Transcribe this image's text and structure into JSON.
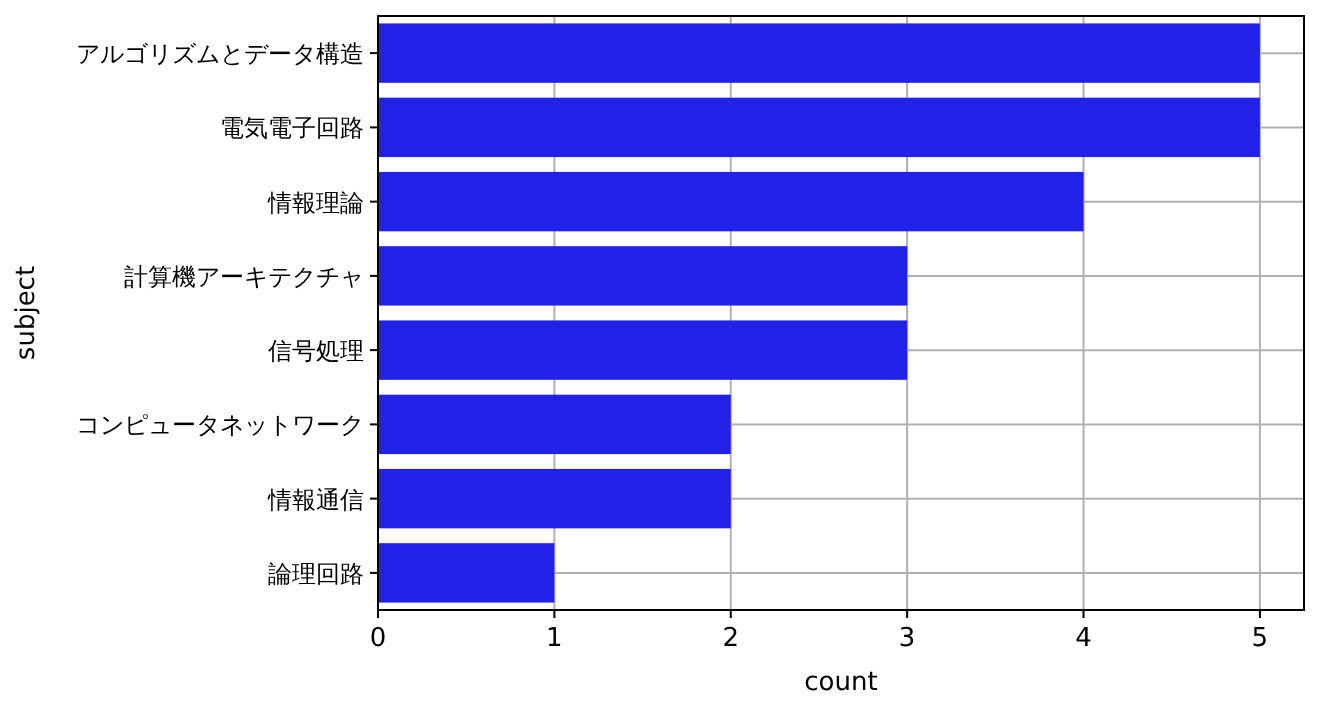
{
  "chart_data": {
    "type": "bar",
    "orientation": "horizontal",
    "xlabel": "count",
    "ylabel": "subject",
    "categories": [
      "アルゴリズムとデータ構造",
      "電気電子回路",
      "情報理論",
      "計算機アーキテクチャ",
      "信号処理",
      "コンピュータネットワーク",
      "情報通信",
      "論理回路"
    ],
    "values": [
      5,
      5,
      4,
      3,
      3,
      2,
      2,
      1
    ],
    "color": "#2121e8",
    "xlim": [
      0,
      5.25
    ],
    "xticks": [
      0,
      1,
      2,
      3,
      4,
      5
    ],
    "grid": true
  }
}
